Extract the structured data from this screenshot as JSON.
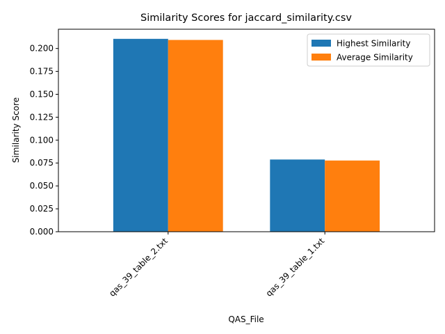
{
  "chart_data": {
    "type": "bar",
    "title": "Similarity Scores for jaccard_similarity.csv",
    "xlabel": "QAS_File",
    "ylabel": "Similarity Score",
    "categories": [
      "qas_39_table_2.txt",
      "qas_39_table_1.txt"
    ],
    "series": [
      {
        "name": "Highest Similarity",
        "color": "#1f77b4",
        "values": [
          0.2105,
          0.0788
        ]
      },
      {
        "name": "Average Similarity",
        "color": "#ff7f0e",
        "values": [
          0.2093,
          0.0777
        ]
      }
    ],
    "ylim": [
      0,
      0.221
    ],
    "yticks": [
      "0.000",
      "0.025",
      "0.050",
      "0.075",
      "0.100",
      "0.125",
      "0.150",
      "0.175",
      "0.200"
    ],
    "grid": false,
    "legend_position": "top-right"
  }
}
